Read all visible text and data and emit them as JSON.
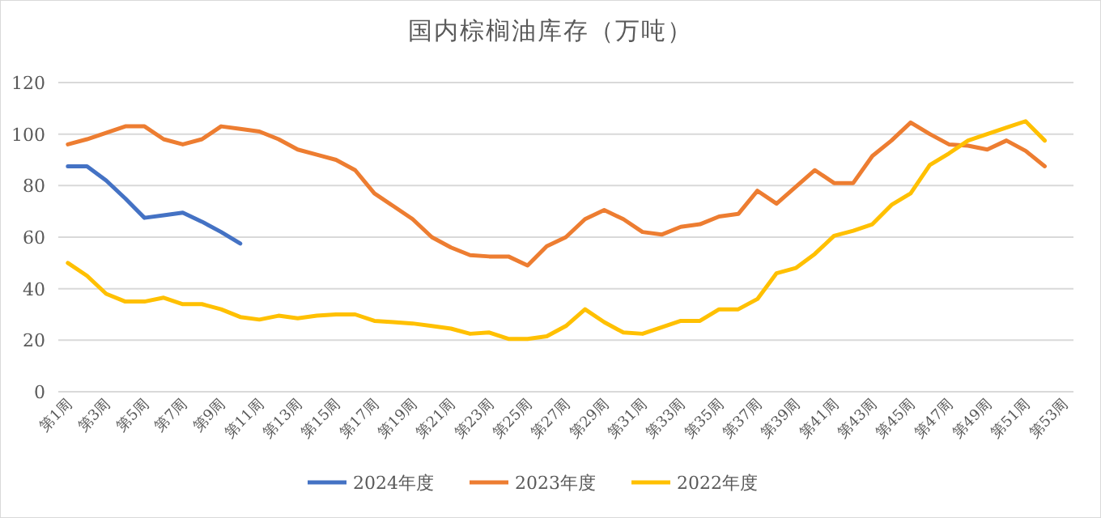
{
  "chart_data": {
    "type": "line",
    "title": "国内棕榈油库存（万吨）",
    "categories": [
      "第1周",
      null,
      "第3周",
      null,
      "第5周",
      null,
      "第7周",
      null,
      "第9周",
      null,
      "第11周",
      null,
      "第13周",
      null,
      "第15周",
      null,
      "第17周",
      null,
      "第19周",
      null,
      "第21周",
      null,
      "第23周",
      null,
      "第25周",
      null,
      "第27周",
      null,
      "第29周",
      null,
      "第31周",
      null,
      "第33周",
      null,
      "第35周",
      null,
      "第37周",
      null,
      "第39周",
      null,
      "第41周",
      null,
      "第43周",
      null,
      "第45周",
      null,
      "第47周",
      null,
      "第49周",
      null,
      "第51周",
      null,
      "第53周"
    ],
    "series": [
      {
        "name": "2024年度",
        "color": "#4472c4",
        "values": [
          87.5,
          87.5,
          82,
          75,
          67.5,
          68.5,
          69.5,
          66,
          62,
          57.5,
          null,
          null,
          null,
          null,
          null,
          null,
          null,
          null,
          null,
          null,
          null,
          null,
          null,
          null,
          null,
          null,
          null,
          null,
          null,
          null,
          null,
          null,
          null,
          null,
          null,
          null,
          null,
          null,
          null,
          null,
          null,
          null,
          null,
          null,
          null,
          null,
          null,
          null,
          null,
          null,
          null,
          null,
          null
        ]
      },
      {
        "name": "2023年度",
        "color": "#ed7d31",
        "values": [
          96,
          98,
          100.5,
          103,
          103,
          98,
          96,
          98,
          103,
          102,
          101,
          98,
          94,
          92,
          90,
          86,
          77,
          72,
          67,
          60,
          56,
          53,
          52.5,
          52.5,
          49,
          56.5,
          60,
          67,
          70.5,
          67,
          62,
          61,
          64,
          65,
          68,
          69,
          78,
          73,
          79.5,
          86,
          81,
          81,
          91.5,
          97.5,
          104.5,
          100,
          96,
          95.5,
          94,
          97.5,
          93.5,
          87.5,
          null
        ]
      },
      {
        "name": "2022年度",
        "color": "#ffc000",
        "values": [
          50,
          45,
          38,
          35,
          35,
          36.5,
          34,
          34,
          32,
          29,
          28,
          29.5,
          28.5,
          29.5,
          30,
          30,
          27.5,
          27,
          26.5,
          25.5,
          24.5,
          22.5,
          23,
          20.5,
          20.5,
          21.5,
          25.5,
          32,
          27,
          23,
          22.5,
          25,
          27.5,
          27.5,
          32,
          32,
          36,
          46,
          48,
          53.5,
          60.5,
          62.5,
          65,
          72.5,
          77,
          88,
          92.5,
          97.5,
          100,
          102.5,
          105,
          97.5,
          null
        ]
      }
    ],
    "ylim": [
      0,
      120
    ],
    "yticks": [
      0,
      20,
      40,
      60,
      80,
      100,
      120
    ],
    "grid": "y",
    "legend": "bottom",
    "marker": "none",
    "line_style": "solid"
  }
}
